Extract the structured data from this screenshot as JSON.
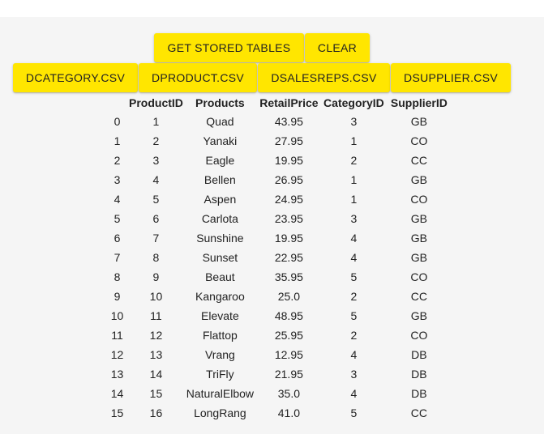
{
  "toolbar": {
    "get_stored_tables": "GET STORED TABLES",
    "clear": "CLEAR",
    "files": [
      "DCATEGORY.CSV",
      "DPRODUCT.CSV",
      "DSALESREPS.CSV",
      "DSUPPLIER.CSV"
    ]
  },
  "table": {
    "columns": [
      "",
      "ProductID",
      "Products",
      "RetailPrice",
      "CategoryID",
      "SupplierID"
    ],
    "rows": [
      [
        "0",
        "1",
        "Quad",
        "43.95",
        "3",
        "GB"
      ],
      [
        "1",
        "2",
        "Yanaki",
        "27.95",
        "1",
        "CO"
      ],
      [
        "2",
        "3",
        "Eagle",
        "19.95",
        "2",
        "CC"
      ],
      [
        "3",
        "4",
        "Bellen",
        "26.95",
        "1",
        "GB"
      ],
      [
        "4",
        "5",
        "Aspen",
        "24.95",
        "1",
        "CO"
      ],
      [
        "5",
        "6",
        "Carlota",
        "23.95",
        "3",
        "GB"
      ],
      [
        "6",
        "7",
        "Sunshine",
        "19.95",
        "4",
        "GB"
      ],
      [
        "7",
        "8",
        "Sunset",
        "22.95",
        "4",
        "GB"
      ],
      [
        "8",
        "9",
        "Beaut",
        "35.95",
        "5",
        "CO"
      ],
      [
        "9",
        "10",
        "Kangaroo",
        "25.0",
        "2",
        "CC"
      ],
      [
        "10",
        "11",
        "Elevate",
        "48.95",
        "5",
        "GB"
      ],
      [
        "11",
        "12",
        "Flattop",
        "25.95",
        "2",
        "CO"
      ],
      [
        "12",
        "13",
        "Vrang",
        "12.95",
        "4",
        "DB"
      ],
      [
        "13",
        "14",
        "TriFly",
        "21.95",
        "3",
        "DB"
      ],
      [
        "14",
        "15",
        "NaturalElbow",
        "35.0",
        "4",
        "DB"
      ],
      [
        "15",
        "16",
        "LongRang",
        "41.0",
        "5",
        "CC"
      ]
    ]
  },
  "colors": {
    "button_bg": "#ffe600",
    "panel_bg": "#f5f5f5"
  }
}
